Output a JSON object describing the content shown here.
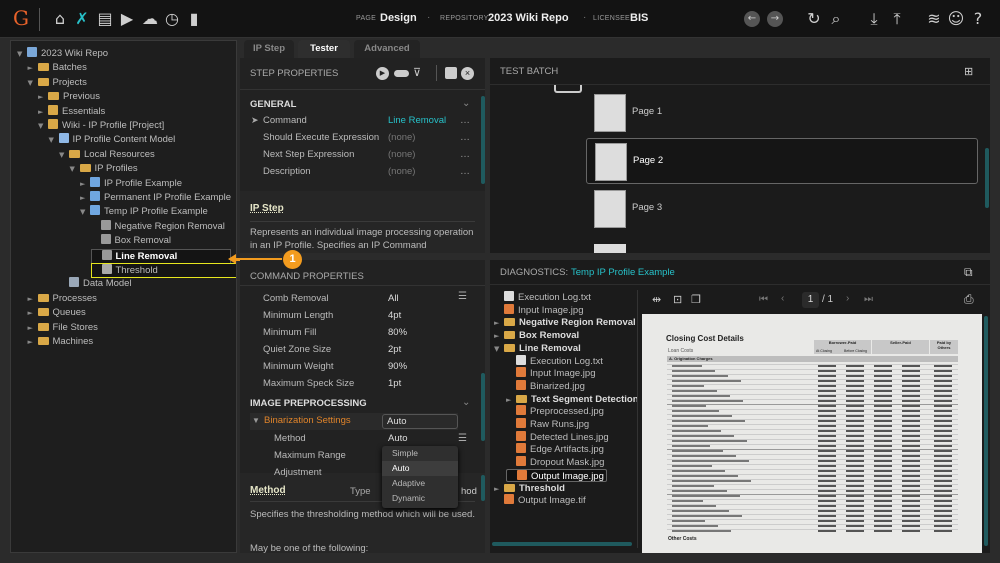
{
  "topbar": {
    "logo": "G",
    "page_label": "PAGE",
    "page_value": "Design",
    "repo_label": "REPOSITORY",
    "repo_value": "2023 Wiki Repo",
    "licensee_label": "LICENSEE",
    "licensee_value": "BIS",
    "accent": "#27c1c9"
  },
  "tree": [
    {
      "label": "2023 Wiki Repo",
      "d": 0,
      "tw": "▼",
      "ic": "repo"
    },
    {
      "label": "Batches",
      "d": 1,
      "tw": "►",
      "ic": "folder"
    },
    {
      "label": "Projects",
      "d": 1,
      "tw": "▼",
      "ic": "folder"
    },
    {
      "label": "Previous",
      "d": 2,
      "tw": "►",
      "ic": "folder"
    },
    {
      "label": "Essentials",
      "d": 2,
      "tw": "►",
      "ic": "project"
    },
    {
      "label": "Wiki - IP Profile [Project]",
      "d": 2,
      "tw": "▼",
      "ic": "project"
    },
    {
      "label": "IP Profile Content Model",
      "d": 3,
      "tw": "▼",
      "ic": "model"
    },
    {
      "label": "Local Resources",
      "d": 4,
      "tw": "▼",
      "ic": "folder"
    },
    {
      "label": "IP Profiles",
      "d": 5,
      "tw": "▼",
      "ic": "folder"
    },
    {
      "label": "IP Profile Example",
      "d": 6,
      "tw": "►",
      "ic": "profile"
    },
    {
      "label": "Permanent IP Profile Example",
      "d": 6,
      "tw": "►",
      "ic": "profile"
    },
    {
      "label": "Temp IP Profile Example",
      "d": 6,
      "tw": "▼",
      "ic": "profile"
    },
    {
      "label": "Negative Region Removal",
      "d": 7,
      "tw": "",
      "ic": "step"
    },
    {
      "label": "Box Removal",
      "d": 7,
      "tw": "",
      "ic": "step"
    },
    {
      "label": "Line Removal",
      "d": 7,
      "tw": "",
      "ic": "step",
      "selected": true
    },
    {
      "label": "Threshold",
      "d": 7,
      "tw": "",
      "ic": "threshold",
      "highlight": true
    },
    {
      "label": "Data Model",
      "d": 4,
      "tw": "",
      "ic": "data"
    },
    {
      "label": "Processes",
      "d": 1,
      "tw": "►",
      "ic": "folder"
    },
    {
      "label": "Queues",
      "d": 1,
      "tw": "►",
      "ic": "folder"
    },
    {
      "label": "File Stores",
      "d": 1,
      "tw": "►",
      "ic": "folder"
    },
    {
      "label": "Machines",
      "d": 1,
      "tw": "►",
      "ic": "folder"
    }
  ],
  "callout": {
    "number": "1",
    "color": "#f39c1f"
  },
  "tabs": [
    "IP Step",
    "Tester",
    "Advanced"
  ],
  "step_properties": {
    "title": "STEP PROPERTIES",
    "general": "GENERAL",
    "rows": [
      {
        "name": "Command",
        "value": "Line Removal",
        "accent": true
      },
      {
        "name": "Should Execute Expression",
        "value": "(none)"
      },
      {
        "name": "Next Step Expression",
        "value": "(none)"
      },
      {
        "name": "Description",
        "value": "(none)"
      }
    ],
    "help_title": "IP Step",
    "help_text": "Represents an individual image processing operation in an IP Profile. Specifies an IP Command"
  },
  "command_properties": {
    "title": "COMMAND PROPERTIES",
    "rows": [
      {
        "name": "Comb Removal",
        "value": "All"
      },
      {
        "name": "Minimum Length",
        "value": "4pt"
      },
      {
        "name": "Minimum Fill",
        "value": "80%"
      },
      {
        "name": "Quiet Zone Size",
        "value": "2pt"
      },
      {
        "name": "Minimum Weight",
        "value": "90%"
      },
      {
        "name": "Maximum Speck Size",
        "value": "1pt"
      }
    ],
    "preproc": "IMAGE PREPROCESSING",
    "binarization": "Binarization Settings",
    "binarization_value": "Auto",
    "sub": [
      {
        "name": "Method",
        "value": "Auto"
      },
      {
        "name": "Maximum Range",
        "value": ""
      },
      {
        "name": "Adjustment",
        "value": ""
      }
    ],
    "dropdown": [
      "Simple",
      "Auto",
      "Adaptive",
      "Dynamic"
    ],
    "dropdown_selected": "Auto",
    "help_title": "Method",
    "help_type": "Type",
    "help_type_value": "hod",
    "help_text": "Specifies the thresholding method which will be used.",
    "help_text2": "May be one of the following:"
  },
  "test_batch": {
    "title": "TEST BATCH",
    "pages": [
      "Page 1",
      "Page 2",
      "Page 3"
    ],
    "selected": "Page 2"
  },
  "diagnostics": {
    "title": "DIAGNOSTICS:",
    "profile": "Temp IP Profile Example",
    "files": [
      {
        "label": "Execution Log.txt",
        "d": 0,
        "ic": "txt"
      },
      {
        "label": "Input Image.jpg",
        "d": 0,
        "ic": "img"
      },
      {
        "label": "Negative Region Removal",
        "d": 0,
        "ic": "folder",
        "tw": "►"
      },
      {
        "label": "Box Removal",
        "d": 0,
        "ic": "folder",
        "tw": "►"
      },
      {
        "label": "Line Removal",
        "d": 0,
        "ic": "folder",
        "tw": "▼"
      },
      {
        "label": "Execution Log.txt",
        "d": 1,
        "ic": "txt"
      },
      {
        "label": "Input Image.jpg",
        "d": 1,
        "ic": "img"
      },
      {
        "label": "Binarized.jpg",
        "d": 1,
        "ic": "img"
      },
      {
        "label": "Text Segment Detection",
        "d": 1,
        "ic": "folder",
        "tw": "►"
      },
      {
        "label": "Preprocessed.jpg",
        "d": 1,
        "ic": "img"
      },
      {
        "label": "Raw Runs.jpg",
        "d": 1,
        "ic": "img"
      },
      {
        "label": "Detected Lines.jpg",
        "d": 1,
        "ic": "img"
      },
      {
        "label": "Edge Artifacts.jpg",
        "d": 1,
        "ic": "img"
      },
      {
        "label": "Dropout Mask.jpg",
        "d": 1,
        "ic": "img"
      },
      {
        "label": "Output Image.jpg",
        "d": 1,
        "ic": "img",
        "selected": true
      },
      {
        "label": "Threshold",
        "d": 0,
        "ic": "folder",
        "tw": "►"
      },
      {
        "label": "Output Image.tif",
        "d": 0,
        "ic": "img"
      }
    ],
    "page_current": "1",
    "page_total": "/ 1"
  },
  "document": {
    "title": "Closing Cost Details",
    "section": "Loan Costs",
    "borrower": "Borrower-Paid",
    "seller": "Seller-Paid",
    "others": "Paid by Others",
    "at_closing": "At Closing",
    "before_closing": "Before Closing",
    "origination": "A. Origination Charges",
    "other_costs": "Other Costs"
  }
}
